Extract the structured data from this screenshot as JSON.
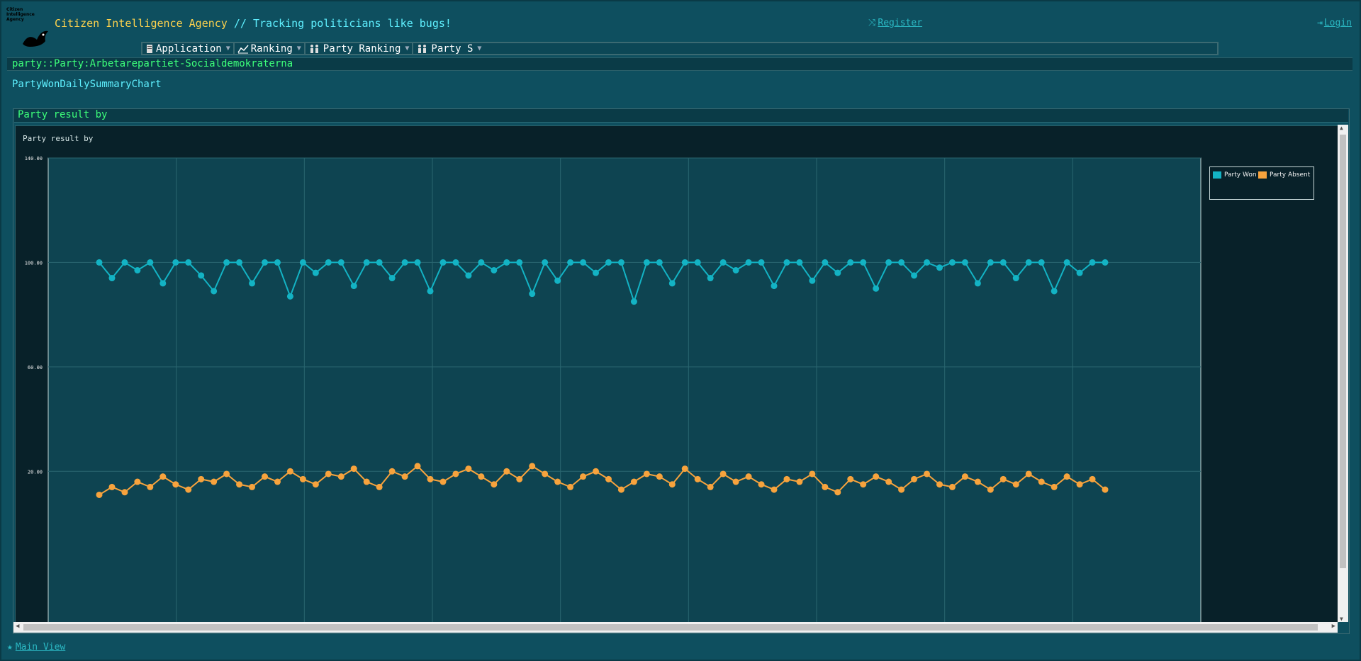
{
  "header": {
    "logo_text": "Citizen Intelligence Agency",
    "brand_name": "Citizen Intelligence Agency",
    "brand_tagline": " // Tracking politicians like bugs!",
    "register_label": "Register",
    "login_label": "Login"
  },
  "menu": [
    {
      "label": "Application",
      "icon": "document-icon"
    },
    {
      "label": "Ranking",
      "icon": "chart-line-icon"
    },
    {
      "label": "Party Ranking",
      "icon": "people-icon"
    },
    {
      "label": "Party S",
      "icon": "people-icon"
    }
  ],
  "breadcrumb": "party::Party:Arbetarepartiet-Socialdemokraterna",
  "page_title": "PartyWonDailySummaryChart",
  "panel": {
    "title": "Party result by"
  },
  "footer": {
    "main_view_label": "Main View"
  },
  "colors": {
    "won": "#13b3c4",
    "absent": "#f7a33d",
    "background": "#0e4f5f",
    "plot_bg": "#0e4451"
  },
  "chart_data": {
    "type": "line",
    "title": "Party result by",
    "ylim": [
      0,
      140
    ],
    "yticks": [
      "140.00",
      "100.00",
      "60.00",
      "20.00"
    ],
    "grid": true,
    "legend_position": "top-right",
    "series": [
      {
        "name": "Party Won",
        "values": [
          100,
          94,
          100,
          97,
          100,
          92,
          100,
          100,
          95,
          89,
          100,
          100,
          92,
          100,
          100,
          87,
          100,
          96,
          100,
          100,
          91,
          100,
          100,
          94,
          100,
          100,
          89,
          100,
          100,
          95,
          100,
          97,
          100,
          100,
          88,
          100,
          93,
          100,
          100,
          96,
          100,
          100,
          85,
          100,
          100,
          92,
          100,
          100,
          94,
          100,
          97,
          100,
          100,
          91,
          100,
          100,
          93,
          100,
          96,
          100,
          100,
          90,
          100,
          100,
          95,
          100,
          98,
          100,
          100,
          92,
          100,
          100,
          94,
          100,
          100,
          89,
          100,
          96,
          100,
          100
        ]
      },
      {
        "name": "Party Absent",
        "values": [
          11,
          14,
          12,
          16,
          14,
          18,
          15,
          13,
          17,
          16,
          19,
          15,
          14,
          18,
          16,
          20,
          17,
          15,
          19,
          18,
          21,
          16,
          14,
          20,
          18,
          22,
          17,
          16,
          19,
          21,
          18,
          15,
          20,
          17,
          22,
          19,
          16,
          14,
          18,
          20,
          17,
          13,
          16,
          19,
          18,
          15,
          21,
          17,
          14,
          19,
          16,
          18,
          15,
          13,
          17,
          16,
          19,
          14,
          12,
          17,
          15,
          18,
          16,
          13,
          17,
          19,
          15,
          14,
          18,
          16,
          13,
          17,
          15,
          19,
          16,
          14,
          18,
          15,
          17,
          13
        ]
      }
    ]
  }
}
